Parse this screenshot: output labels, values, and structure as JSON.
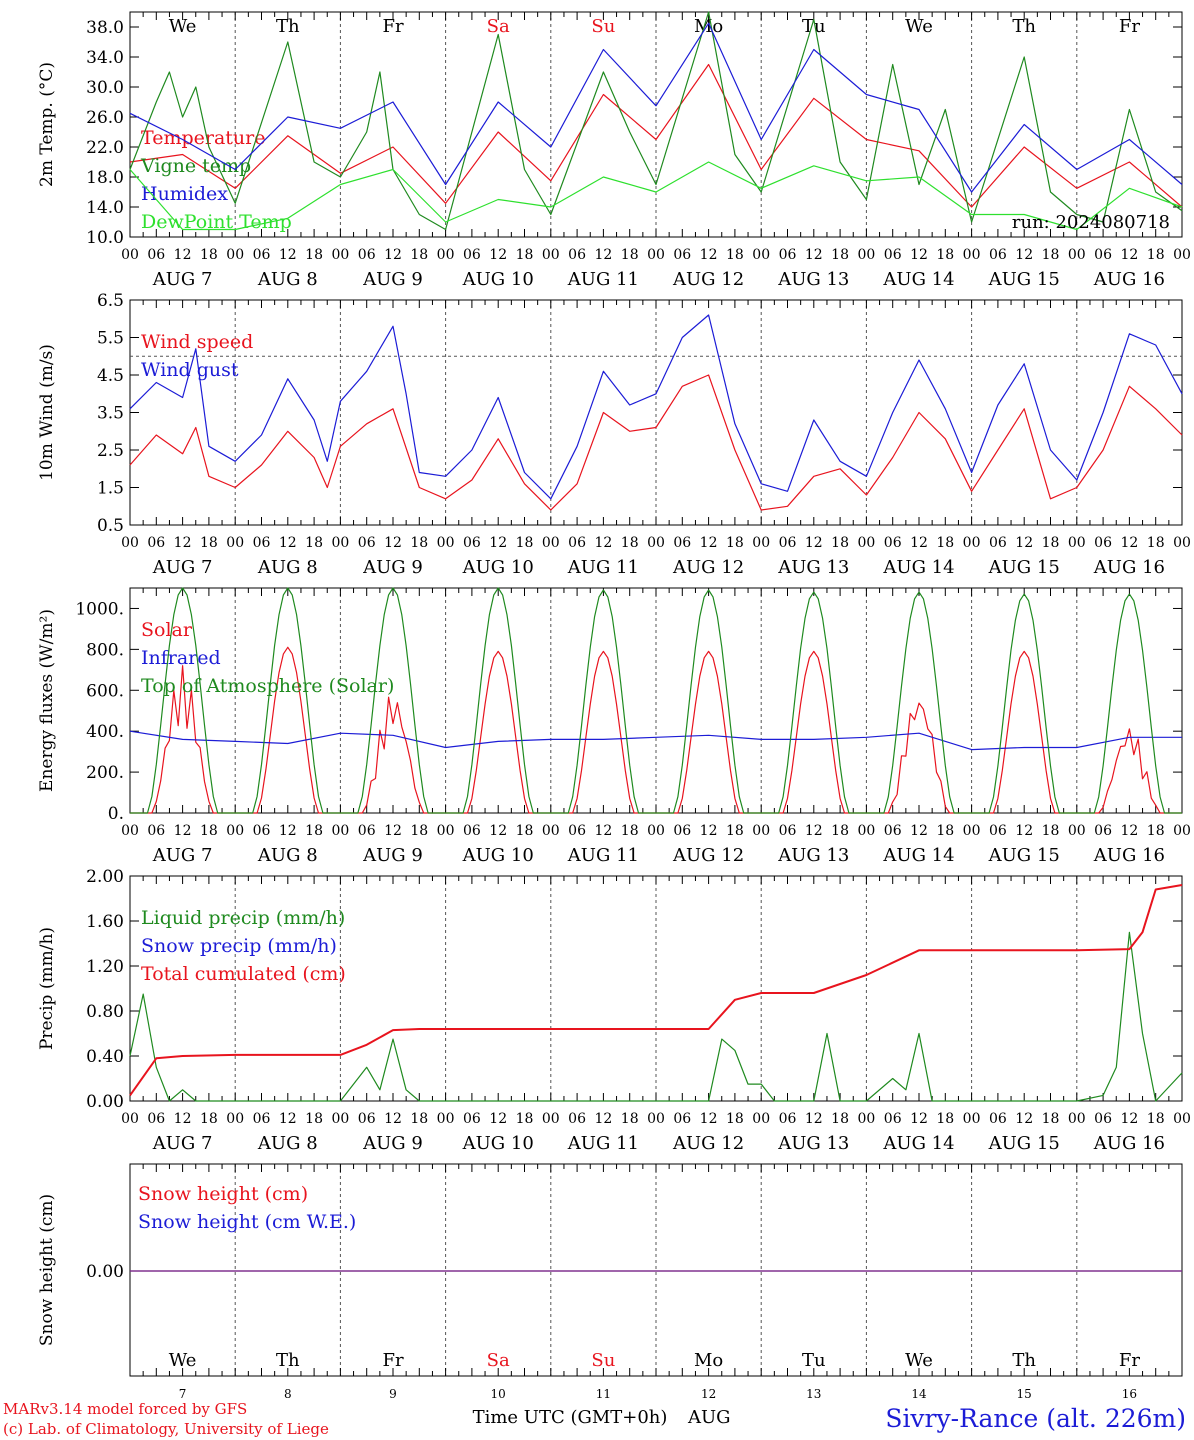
{
  "footer": {
    "model_line": "MARv3.14 model forced by GFS",
    "credit_line": "(c) Lab. of Climatology, University of Liege",
    "xlabel": "Time UTC (GMT+0h)",
    "month_label": "AUG",
    "station": "Sivry-Rance (alt. 226m)"
  },
  "colors": {
    "red": "#e8141e",
    "green": "#1f8a1f",
    "blue": "#1c1cd6",
    "lightgreen": "#2ee02e",
    "purple": "#7b2a8a",
    "axis": "#000000",
    "weekend": "#e8141e"
  },
  "time_axis": {
    "days": [
      "7",
      "8",
      "9",
      "10",
      "11",
      "12",
      "13",
      "14",
      "15",
      "16"
    ],
    "day_labels": [
      "AUG 7",
      "AUG 8",
      "AUG 9",
      "AUG 10",
      "AUG 11",
      "AUG 12",
      "AUG 13",
      "AUG 14",
      "AUG 15",
      "AUG 16"
    ],
    "weekdays": [
      "We",
      "Th",
      "Fr",
      "Sa",
      "Su",
      "Mo",
      "Tu",
      "We",
      "Th",
      "Fr"
    ],
    "weekend_flags": [
      false,
      false,
      false,
      true,
      true,
      false,
      false,
      false,
      false,
      false
    ],
    "hour_labels": [
      "00",
      "06",
      "12",
      "18"
    ],
    "end_label": "00",
    "hours_total": 240
  },
  "chart_data": [
    {
      "type": "line",
      "id": "temperature",
      "ylabel": "2m Temp. (°C)",
      "ylim": [
        10,
        40
      ],
      "yticks": [
        "10.0",
        "14.0",
        "18.0",
        "22.0",
        "26.0",
        "30.0",
        "34.0",
        "38.0"
      ],
      "annotation": "run: 2024080718",
      "series": [
        {
          "name": "Temperature",
          "color": "red",
          "x": [
            0,
            12,
            24,
            36,
            48,
            60,
            72,
            84,
            96,
            108,
            120,
            132,
            144,
            156,
            168,
            180,
            192,
            204,
            216,
            228,
            240
          ],
          "values": [
            20,
            21,
            16.5,
            23.5,
            18.5,
            22,
            14.5,
            24,
            17.5,
            29,
            23,
            33,
            19,
            28.5,
            23,
            21.5,
            14,
            22,
            16.5,
            20,
            14
          ]
        },
        {
          "name": "Vigne temp",
          "color": "green",
          "x": [
            0,
            6,
            9,
            12,
            15,
            18,
            24,
            36,
            42,
            48,
            54,
            57,
            60,
            66,
            72,
            84,
            90,
            96,
            108,
            114,
            120,
            132,
            138,
            144,
            156,
            162,
            168,
            174,
            180,
            186,
            192,
            204,
            210,
            216,
            222,
            228,
            234,
            240
          ],
          "values": [
            19,
            28,
            32,
            26,
            30,
            22,
            14.5,
            36,
            20,
            18,
            24,
            32,
            19,
            13,
            11,
            37,
            19,
            13,
            32,
            24,
            17,
            40,
            21,
            16,
            39,
            20,
            15,
            33,
            17,
            27,
            12,
            34,
            16,
            13,
            12,
            27,
            16,
            13.5
          ]
        },
        {
          "name": "Humidex",
          "color": "blue",
          "x": [
            0,
            12,
            24,
            36,
            48,
            60,
            72,
            84,
            96,
            108,
            120,
            132,
            144,
            156,
            168,
            180,
            192,
            204,
            216,
            228,
            240
          ],
          "values": [
            26.5,
            23,
            19,
            26,
            24.5,
            28,
            17,
            28,
            22,
            35,
            27.5,
            38.5,
            23,
            35,
            29,
            27,
            16,
            25,
            19,
            23,
            17
          ]
        },
        {
          "name": "DewPoint Temp",
          "color": "lightgreen",
          "x": [
            0,
            12,
            24,
            36,
            48,
            60,
            72,
            84,
            96,
            108,
            120,
            132,
            144,
            156,
            168,
            180,
            192,
            204,
            216,
            228,
            240
          ],
          "values": [
            19,
            11,
            11,
            12.5,
            17,
            19,
            12,
            15,
            14,
            18,
            16,
            20,
            16.5,
            19.5,
            17.5,
            18,
            13,
            13,
            11,
            16.5,
            14
          ]
        }
      ]
    },
    {
      "type": "line",
      "id": "wind",
      "ylabel": "10m Wind (m/s)",
      "ylim": [
        0.5,
        6.5
      ],
      "yticks": [
        "0.5",
        "1.5",
        "2.5",
        "3.5",
        "4.5",
        "5.5",
        "6.5"
      ],
      "ref_line": 5,
      "series": [
        {
          "name": "Wind speed",
          "color": "red",
          "x": [
            0,
            6,
            12,
            15,
            18,
            24,
            30,
            36,
            42,
            45,
            48,
            54,
            60,
            66,
            72,
            78,
            84,
            90,
            96,
            102,
            108,
            114,
            120,
            126,
            132,
            138,
            144,
            150,
            156,
            162,
            168,
            174,
            180,
            186,
            192,
            198,
            204,
            210,
            216,
            222,
            228,
            234,
            240
          ],
          "values": [
            2.1,
            2.9,
            2.4,
            3.1,
            1.8,
            1.5,
            2.1,
            3,
            2.3,
            1.5,
            2.6,
            3.2,
            3.6,
            1.5,
            1.2,
            1.7,
            2.8,
            1.6,
            0.9,
            1.6,
            3.5,
            3,
            3.1,
            4.2,
            4.5,
            2.5,
            0.9,
            1,
            1.8,
            2,
            1.3,
            2.3,
            3.5,
            2.8,
            1.4,
            2.5,
            3.6,
            1.2,
            1.5,
            2.5,
            4.2,
            3.6,
            2.9
          ]
        },
        {
          "name": "Wind gust",
          "color": "blue",
          "x": [
            0,
            6,
            12,
            15,
            18,
            24,
            30,
            36,
            42,
            45,
            48,
            54,
            60,
            63,
            66,
            72,
            78,
            84,
            90,
            96,
            102,
            108,
            114,
            120,
            126,
            132,
            138,
            144,
            150,
            156,
            162,
            168,
            174,
            180,
            186,
            192,
            198,
            204,
            210,
            216,
            222,
            228,
            234,
            240
          ],
          "values": [
            3.6,
            4.3,
            3.9,
            5.2,
            2.6,
            2.2,
            2.9,
            4.4,
            3.3,
            2.2,
            3.8,
            4.6,
            5.8,
            4,
            1.9,
            1.8,
            2.5,
            3.9,
            1.9,
            1.2,
            2.6,
            4.6,
            3.7,
            4,
            5.5,
            6.1,
            3.2,
            1.6,
            1.4,
            3.3,
            2.2,
            1.8,
            3.5,
            4.9,
            3.6,
            1.9,
            3.7,
            4.8,
            2.5,
            1.7,
            3.5,
            5.6,
            5.3,
            4
          ]
        }
      ]
    },
    {
      "type": "line",
      "id": "energy",
      "ylabel": "Energy fluxes (W/m²)",
      "ylim": [
        0,
        1100
      ],
      "yticks": [
        "0.",
        "200.",
        "400.",
        "600.",
        "800.",
        "1000."
      ],
      "series": [
        {
          "name": "Solar",
          "color": "red",
          "peaks": [
            720,
            810,
            600,
            790,
            790,
            790,
            790,
            600,
            790,
            430
          ]
        },
        {
          "name": "Infrared",
          "color": "blue",
          "x": [
            0,
            12,
            24,
            36,
            48,
            60,
            72,
            84,
            96,
            108,
            120,
            132,
            144,
            156,
            168,
            180,
            192,
            204,
            216,
            228,
            240
          ],
          "values": [
            400,
            360,
            350,
            340,
            390,
            380,
            320,
            350,
            360,
            360,
            370,
            380,
            360,
            360,
            370,
            390,
            310,
            320,
            320,
            370,
            370
          ]
        },
        {
          "name": "Top of Atmosphere (Solar)",
          "color": "green",
          "peaks": [
            1100,
            1100,
            1100,
            1100,
            1090,
            1090,
            1080,
            1080,
            1070,
            1070
          ]
        }
      ]
    },
    {
      "type": "line",
      "id": "precip",
      "ylabel": "Precip (mm/h)",
      "ylim": [
        0,
        2
      ],
      "yticks": [
        "0.00",
        "0.40",
        "0.80",
        "1.20",
        "1.60",
        "2.00"
      ],
      "series": [
        {
          "name": "Liquid precip (mm/h)",
          "color": "green",
          "x": [
            0,
            3,
            6,
            9,
            12,
            15,
            48,
            54,
            57,
            60,
            63,
            66,
            132,
            135,
            138,
            141,
            144,
            147,
            150,
            156,
            159,
            162,
            168,
            174,
            177,
            180,
            183,
            186,
            216,
            222,
            225,
            228,
            231,
            234,
            240
          ],
          "values": [
            0.4,
            0.95,
            0.3,
            0,
            0.1,
            0,
            0,
            0.3,
            0.1,
            0.55,
            0.1,
            0,
            0,
            0.55,
            0.45,
            0.15,
            0.15,
            0,
            0,
            0,
            0.6,
            0,
            0,
            0.2,
            0.1,
            0.6,
            0,
            0,
            0,
            0.05,
            0.3,
            1.5,
            0.6,
            0,
            0.25
          ]
        },
        {
          "name": "Snow precip (mm/h)",
          "color": "blue",
          "x": [],
          "values": []
        },
        {
          "name": "Total cumulated (cm)",
          "color": "red",
          "x": [
            0,
            6,
            12,
            24,
            36,
            48,
            54,
            60,
            66,
            72,
            96,
            120,
            132,
            138,
            144,
            156,
            168,
            180,
            192,
            216,
            228,
            231,
            234,
            240
          ],
          "values": [
            0.05,
            0.38,
            0.4,
            0.41,
            0.41,
            0.41,
            0.5,
            0.63,
            0.64,
            0.64,
            0.64,
            0.64,
            0.64,
            0.9,
            0.96,
            0.96,
            1.12,
            1.34,
            1.34,
            1.34,
            1.35,
            1.5,
            1.88,
            1.92
          ]
        }
      ]
    },
    {
      "type": "line",
      "id": "snow",
      "ylabel": "Snow height (cm)",
      "yticks": [
        "0.00"
      ],
      "series": [
        {
          "name": "Snow height (cm)",
          "color": "red",
          "x": [
            0,
            240
          ],
          "values": [
            0,
            0
          ]
        },
        {
          "name": "Snow height (cm W.E.)",
          "color": "blue",
          "x": [
            0,
            240
          ],
          "values": [
            0,
            0
          ]
        }
      ]
    }
  ]
}
